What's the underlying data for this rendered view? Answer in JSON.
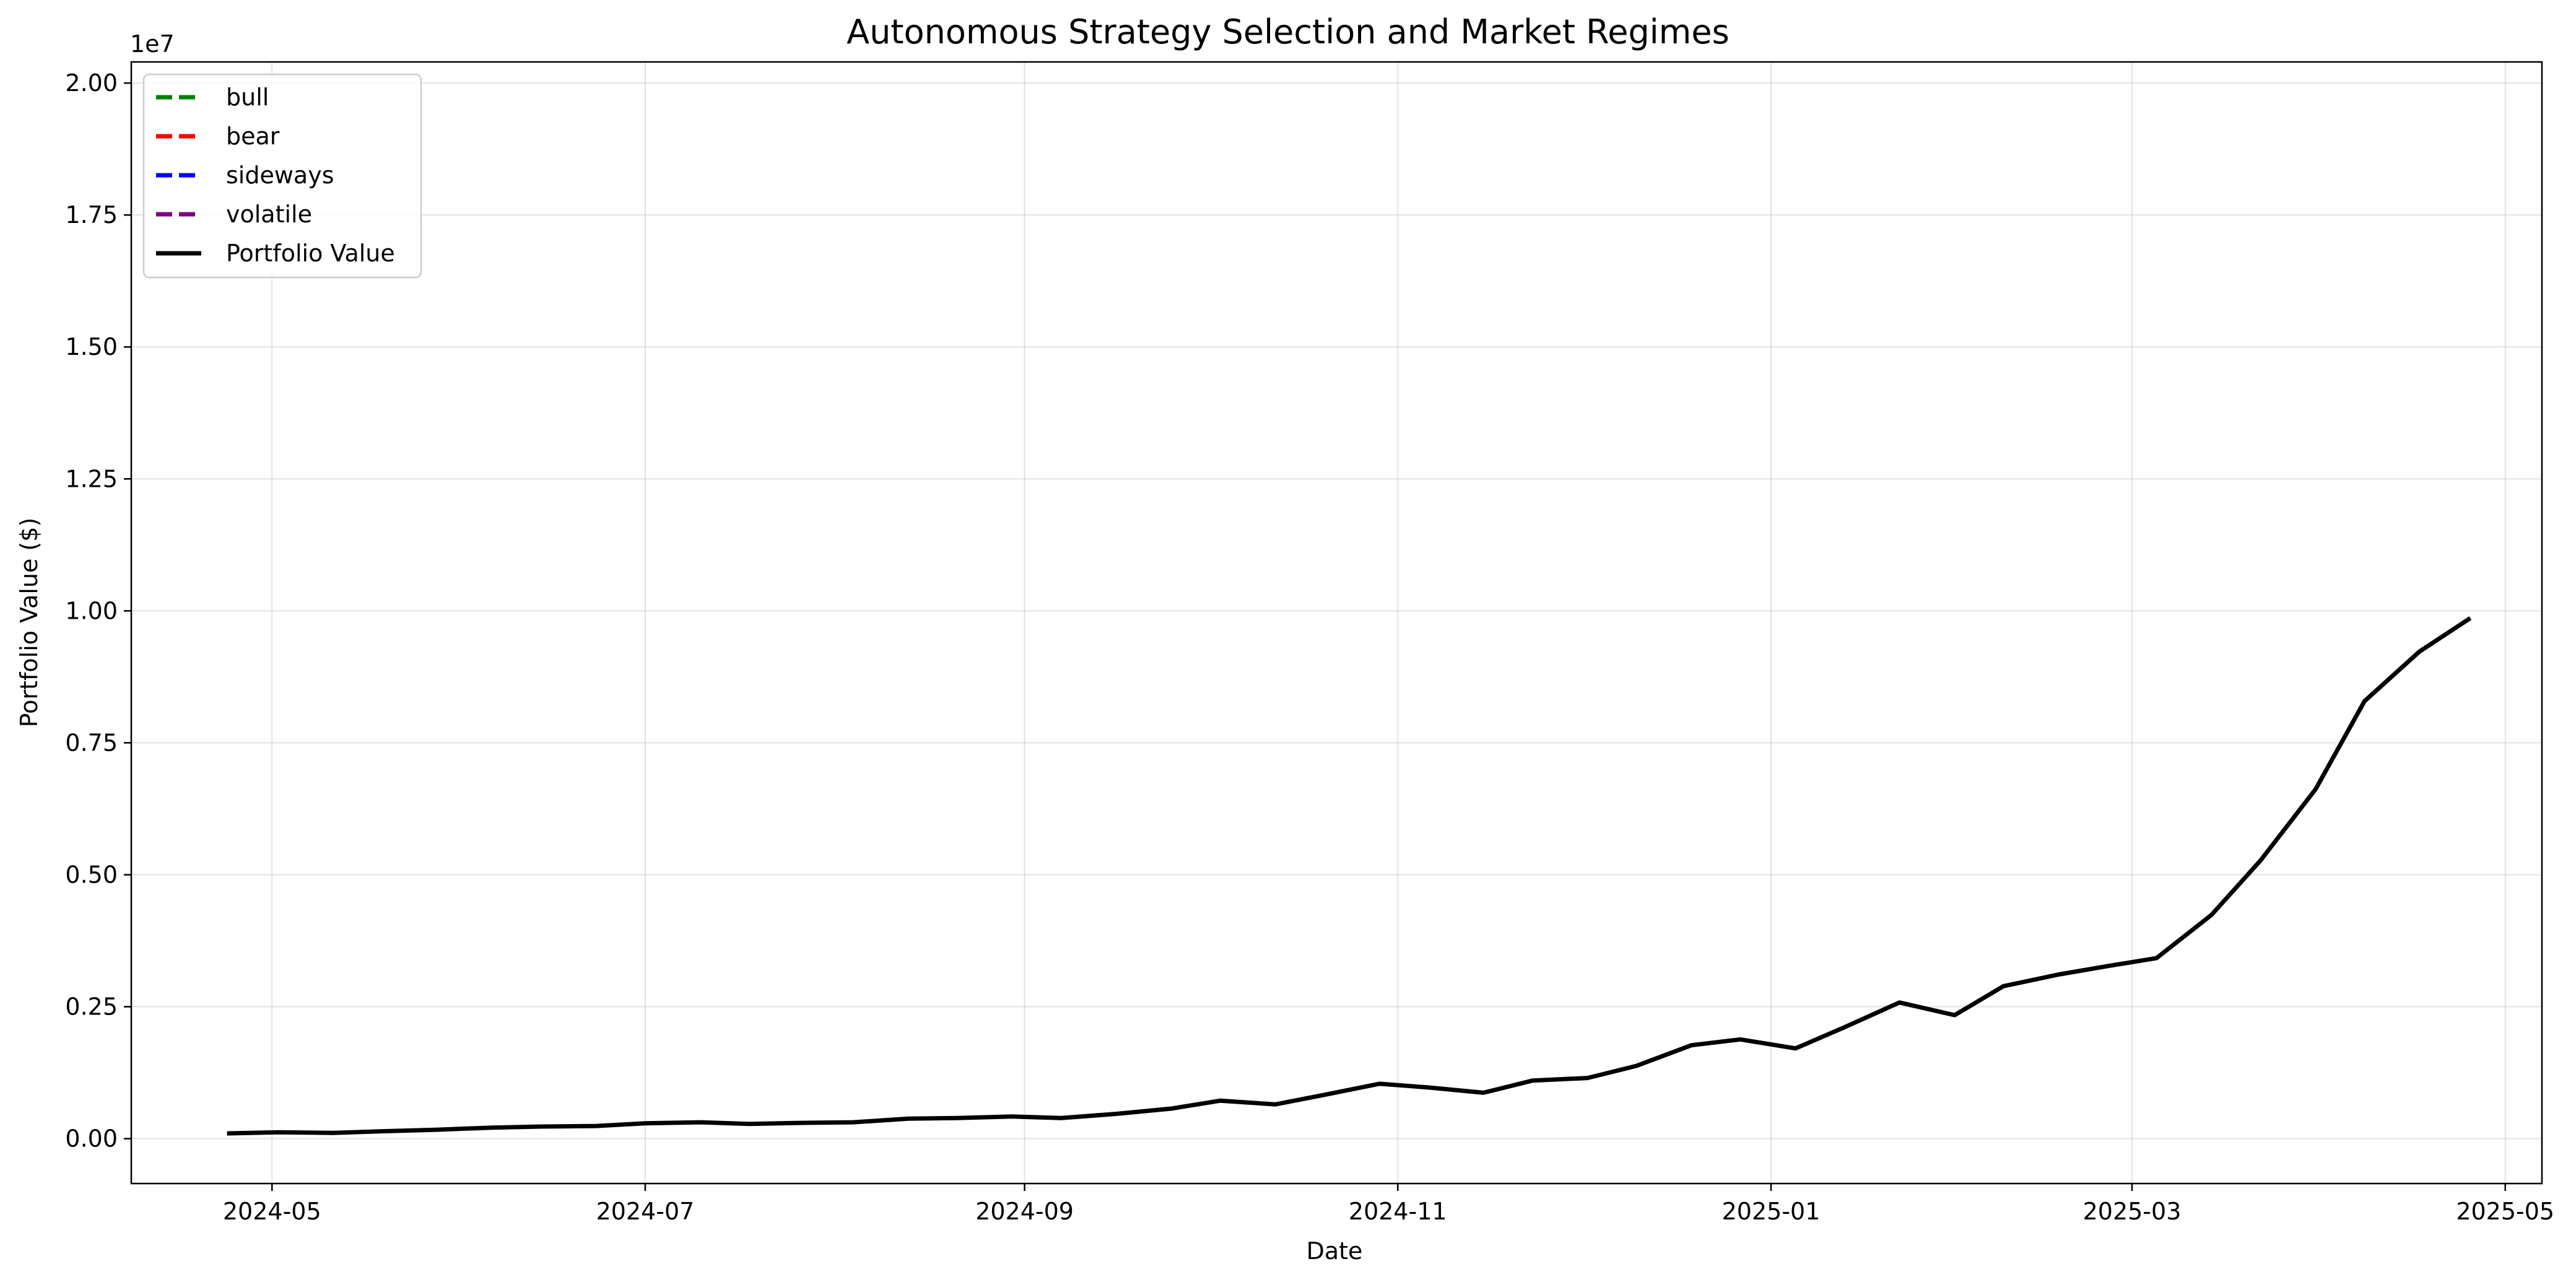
{
  "chart_data": {
    "type": "line",
    "title": "Autonomous Strategy Selection and Market Regimes",
    "xlabel": "Date",
    "ylabel": "Portfolio Value ($)",
    "y_offset_text": "1e7",
    "y_scale_multiplier": 10000000,
    "xlim": [
      "2024-04-08",
      "2025-05-07"
    ],
    "ylim": [
      -0.085,
      2.04
    ],
    "x_ticks": [
      {
        "date": "2024-05-01",
        "label": "2024-05"
      },
      {
        "date": "2024-07-01",
        "label": "2024-07"
      },
      {
        "date": "2024-09-01",
        "label": "2024-09"
      },
      {
        "date": "2024-11-01",
        "label": "2024-11"
      },
      {
        "date": "2025-01-01",
        "label": "2025-01"
      },
      {
        "date": "2025-03-01",
        "label": "2025-03"
      },
      {
        "date": "2025-05-01",
        "label": "2025-05"
      }
    ],
    "y_ticks": [
      {
        "value": 0.0,
        "label": "0.00"
      },
      {
        "value": 0.25,
        "label": "0.25"
      },
      {
        "value": 0.5,
        "label": "0.50"
      },
      {
        "value": 0.75,
        "label": "0.75"
      },
      {
        "value": 1.0,
        "label": "1.00"
      },
      {
        "value": 1.25,
        "label": "1.25"
      },
      {
        "value": 1.5,
        "label": "1.50"
      },
      {
        "value": 1.75,
        "label": "1.75"
      },
      {
        "value": 2.0,
        "label": "2.00"
      }
    ],
    "grid": true,
    "legend_position": "upper-left",
    "legend": [
      {
        "label": "bull",
        "color": "#008000",
        "style": "dashed"
      },
      {
        "label": "bear",
        "color": "#ff0000",
        "style": "dashed"
      },
      {
        "label": "sideways",
        "color": "#0000ff",
        "style": "dashed"
      },
      {
        "label": "volatile",
        "color": "#800080",
        "style": "dashed"
      },
      {
        "label": "Portfolio Value",
        "color": "#000000",
        "style": "solid"
      }
    ],
    "series": [
      {
        "name": "Portfolio Value",
        "color": "#000000",
        "x": [
          "2024-04-24",
          "2024-05-02",
          "2024-05-11",
          "2024-05-19",
          "2024-05-28",
          "2024-06-06",
          "2024-06-14",
          "2024-06-23",
          "2024-07-01",
          "2024-07-10",
          "2024-07-18",
          "2024-07-27",
          "2024-08-04",
          "2024-08-13",
          "2024-08-21",
          "2024-08-30",
          "2024-09-07",
          "2024-09-16",
          "2024-09-25",
          "2024-10-03",
          "2024-10-12",
          "2024-10-20",
          "2024-10-29",
          "2024-11-06",
          "2024-11-15",
          "2024-11-23",
          "2024-12-02",
          "2024-12-10",
          "2024-12-19",
          "2024-12-27",
          "2025-01-05",
          "2025-01-13",
          "2025-01-22",
          "2025-01-31",
          "2025-02-08",
          "2025-02-17",
          "2025-02-25",
          "2025-03-05",
          "2025-03-14",
          "2025-03-22",
          "2025-03-31",
          "2025-04-08",
          "2025-04-17",
          "2025-04-25"
        ],
        "values": [
          0.01,
          0.012,
          0.011,
          0.014,
          0.017,
          0.021,
          0.023,
          0.024,
          0.029,
          0.031,
          0.028,
          0.03,
          0.031,
          0.038,
          0.039,
          0.042,
          0.039,
          0.047,
          0.057,
          0.072,
          0.065,
          0.083,
          0.104,
          0.097,
          0.087,
          0.11,
          0.115,
          0.138,
          0.177,
          0.188,
          0.171,
          0.211,
          0.258,
          0.234,
          0.289,
          0.311,
          0.327,
          0.342,
          0.424,
          0.527,
          0.662,
          0.829,
          0.923,
          0.984
        ]
      }
    ]
  }
}
